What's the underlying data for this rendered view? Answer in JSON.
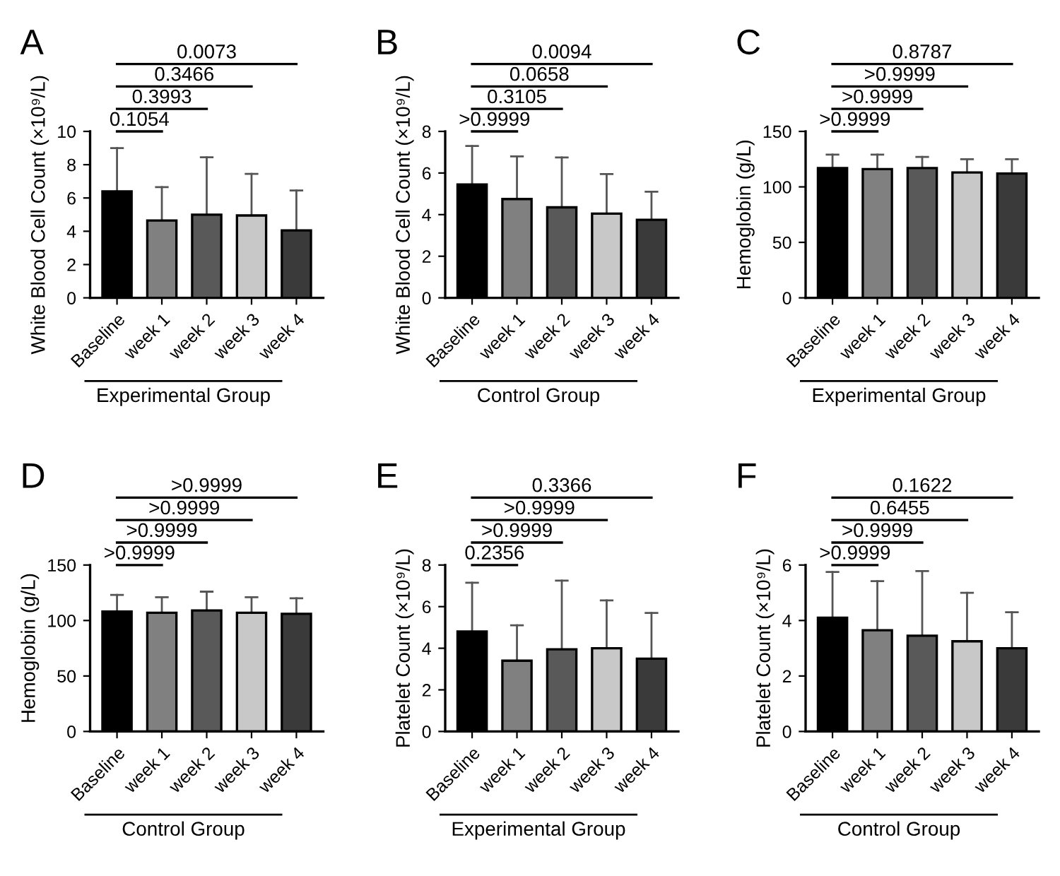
{
  "chart_data": [
    {
      "type": "bar",
      "title": "A",
      "ylabel": "White Blood Cell Count (×10⁹/L)",
      "xlabel": "Experimental Group",
      "categories": [
        "Baseline",
        "week 1",
        "week 2",
        "week 3",
        "week 4"
      ],
      "values": [
        6.4,
        4.65,
        5.0,
        4.95,
        4.05
      ],
      "errors": [
        [
          6.4,
          9.0
        ],
        [
          4.65,
          6.65
        ],
        [
          5.0,
          8.45
        ],
        [
          4.95,
          7.45
        ],
        [
          4.05,
          6.45
        ]
      ],
      "colors": [
        "#000000",
        "#808080",
        "#595959",
        "#c8c8c8",
        "#3a3a3a"
      ],
      "ylim": [
        0,
        10
      ],
      "yticks": [
        0,
        2,
        4,
        6,
        8,
        10
      ],
      "annotations": [
        "0.1054",
        "0.3993",
        "0.3466",
        "0.0073"
      ]
    },
    {
      "type": "bar",
      "title": "B",
      "ylabel": "White Blood Cell Count (×10⁹/L)",
      "xlabel": "Control Group",
      "categories": [
        "Baseline",
        "week 1",
        "week 2",
        "week 3",
        "week 4"
      ],
      "values": [
        5.45,
        4.75,
        4.35,
        4.05,
        3.75
      ],
      "errors": [
        [
          5.45,
          7.3
        ],
        [
          4.75,
          6.8
        ],
        [
          4.35,
          6.75
        ],
        [
          4.05,
          5.95
        ],
        [
          3.75,
          5.1
        ]
      ],
      "colors": [
        "#000000",
        "#808080",
        "#595959",
        "#c8c8c8",
        "#3a3a3a"
      ],
      "ylim": [
        0,
        8
      ],
      "yticks": [
        0,
        2,
        4,
        6,
        8
      ],
      "annotations": [
        ">0.9999",
        "0.3105",
        "0.0658",
        "0.0094"
      ]
    },
    {
      "type": "bar",
      "title": "C",
      "ylabel": "Hemoglobin (g/L)",
      "xlabel": "Experimental Group",
      "categories": [
        "Baseline",
        "week 1",
        "week 2",
        "week 3",
        "week 4"
      ],
      "values": [
        117,
        116,
        117,
        113,
        112
      ],
      "errors": [
        [
          117,
          129
        ],
        [
          116,
          129
        ],
        [
          117,
          127
        ],
        [
          113,
          125
        ],
        [
          112,
          125
        ]
      ],
      "colors": [
        "#000000",
        "#808080",
        "#595959",
        "#c8c8c8",
        "#3a3a3a"
      ],
      "ylim": [
        0,
        150
      ],
      "yticks": [
        0,
        50,
        100,
        150
      ],
      "annotations": [
        ">0.9999",
        ">0.9999",
        ">0.9999",
        "0.8787"
      ]
    },
    {
      "type": "bar",
      "title": "D",
      "ylabel": "Hemoglobin (g/L)",
      "xlabel": "Control Group",
      "categories": [
        "Baseline",
        "week 1",
        "week 2",
        "week 3",
        "week 4"
      ],
      "values": [
        108,
        107,
        109,
        107,
        106
      ],
      "errors": [
        [
          108,
          123
        ],
        [
          107,
          121
        ],
        [
          109,
          126
        ],
        [
          107,
          121
        ],
        [
          106,
          120
        ]
      ],
      "colors": [
        "#000000",
        "#808080",
        "#595959",
        "#c8c8c8",
        "#3a3a3a"
      ],
      "ylim": [
        0,
        150
      ],
      "yticks": [
        0,
        50,
        100,
        150
      ],
      "annotations": [
        ">0.9999",
        ">0.9999",
        ">0.9999",
        ">0.9999"
      ]
    },
    {
      "type": "bar",
      "title": "E",
      "ylabel": "Platelet Count (×10⁹/L)",
      "xlabel": "Experimental Group",
      "categories": [
        "Baseline",
        "week 1",
        "week 2",
        "week 3",
        "week 4"
      ],
      "values": [
        4.8,
        3.4,
        3.95,
        4.0,
        3.5
      ],
      "errors": [
        [
          4.8,
          7.15
        ],
        [
          3.4,
          5.1
        ],
        [
          3.95,
          7.25
        ],
        [
          4.0,
          6.3
        ],
        [
          3.5,
          5.7
        ]
      ],
      "colors": [
        "#000000",
        "#808080",
        "#595959",
        "#c8c8c8",
        "#3a3a3a"
      ],
      "ylim": [
        0,
        8
      ],
      "yticks": [
        0,
        2,
        4,
        6,
        8
      ],
      "annotations": [
        "0.2356",
        ">0.9999",
        ">0.9999",
        "0.3366"
      ]
    },
    {
      "type": "bar",
      "title": "F",
      "ylabel": "Platelet Count (×10⁹/L)",
      "xlabel": "Control Group",
      "categories": [
        "Baseline",
        "week 1",
        "week 2",
        "week 3",
        "week 4"
      ],
      "values": [
        4.1,
        3.65,
        3.45,
        3.25,
        3.0
      ],
      "errors": [
        [
          4.1,
          5.75
        ],
        [
          3.65,
          5.42
        ],
        [
          3.45,
          5.78
        ],
        [
          3.25,
          5.0
        ],
        [
          3.0,
          4.3
        ]
      ],
      "colors": [
        "#000000",
        "#808080",
        "#595959",
        "#c8c8c8",
        "#3a3a3a"
      ],
      "ylim": [
        0,
        6
      ],
      "yticks": [
        0,
        2,
        4,
        6
      ],
      "annotations": [
        ">0.9999",
        ">0.9999",
        "0.6455",
        "0.1622"
      ]
    }
  ]
}
